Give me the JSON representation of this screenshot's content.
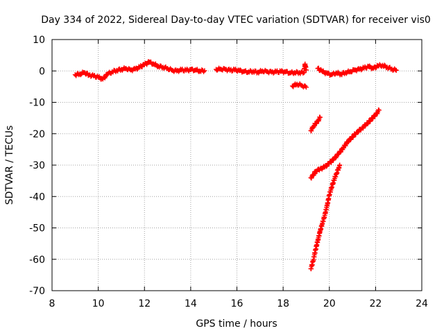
{
  "chart_data": {
    "type": "scatter",
    "title": "Day 334 of 2022, Sidereal Day-to-day VTEC variation (SDTVAR) for receiver vis0",
    "xlabel": "GPS time / hours",
    "ylabel": "SDTVAR / TECUs",
    "xlim": [
      8,
      24
    ],
    "ylim": [
      -70,
      10
    ],
    "xticks": [
      8,
      10,
      12,
      14,
      16,
      18,
      20,
      22,
      24
    ],
    "yticks": [
      10,
      0,
      -10,
      -20,
      -30,
      -40,
      -50,
      -60,
      -70
    ],
    "xtick_labels": [
      "8",
      "10",
      "12",
      "14",
      "16",
      "18",
      "20",
      "22",
      "24"
    ],
    "ytick_labels": [
      "10",
      "0",
      "-10",
      "-20",
      "-30",
      "-40",
      "-50",
      "-60",
      "-70"
    ],
    "grid": true,
    "marker": "plus",
    "color": "#ff0000",
    "series": [
      {
        "points": [
          [
            9.0,
            -1.2
          ],
          [
            9.2,
            -1.0
          ],
          [
            9.4,
            -0.5
          ],
          [
            9.6,
            -1.3
          ],
          [
            9.8,
            -1.6
          ],
          [
            10.0,
            -2.0
          ],
          [
            10.2,
            -2.6
          ],
          [
            10.4,
            -1.0
          ],
          [
            10.6,
            -0.3
          ],
          [
            10.8,
            0.2
          ],
          [
            11.0,
            0.5
          ],
          [
            11.2,
            0.8
          ],
          [
            11.4,
            0.3
          ],
          [
            11.6,
            0.6
          ],
          [
            11.8,
            1.2
          ],
          [
            12.0,
            2.0
          ],
          [
            12.2,
            2.8
          ],
          [
            12.4,
            2.2
          ],
          [
            12.6,
            1.5
          ],
          [
            12.8,
            1.2
          ],
          [
            13.0,
            0.8
          ],
          [
            13.2,
            0.2
          ],
          [
            13.4,
            0.0
          ],
          [
            13.6,
            0.3
          ],
          [
            13.8,
            0.2
          ],
          [
            14.0,
            0.4
          ],
          [
            14.2,
            0.3
          ],
          [
            14.4,
            0.0
          ],
          [
            14.6,
            0.1
          ],
          [
            15.1,
            0.5
          ],
          [
            15.3,
            0.6
          ],
          [
            15.5,
            0.5
          ],
          [
            15.7,
            0.2
          ],
          [
            15.9,
            0.3
          ],
          [
            16.1,
            0.1
          ],
          [
            16.3,
            -0.2
          ],
          [
            16.5,
            -0.3
          ],
          [
            16.7,
            -0.1
          ],
          [
            16.9,
            -0.4
          ],
          [
            17.1,
            0.0
          ],
          [
            17.3,
            -0.2
          ],
          [
            17.5,
            -0.4
          ],
          [
            17.7,
            -0.3
          ],
          [
            17.9,
            -0.2
          ],
          [
            18.1,
            -0.3
          ],
          [
            18.3,
            -0.6
          ],
          [
            18.5,
            -0.5
          ],
          [
            18.7,
            -0.5
          ],
          [
            18.9,
            -0.5
          ],
          [
            18.95,
            2.2
          ],
          [
            19.0,
            0.3
          ],
          [
            19.5,
            0.8
          ],
          [
            19.7,
            -0.2
          ],
          [
            19.9,
            -0.8
          ],
          [
            20.1,
            -1.2
          ],
          [
            20.3,
            -0.6
          ],
          [
            20.5,
            -1.0
          ],
          [
            20.7,
            -0.5
          ],
          [
            20.9,
            -0.2
          ],
          [
            21.1,
            0.3
          ],
          [
            21.3,
            0.5
          ],
          [
            21.5,
            0.9
          ],
          [
            21.7,
            1.4
          ],
          [
            21.9,
            0.8
          ],
          [
            22.1,
            1.6
          ],
          [
            22.3,
            1.8
          ],
          [
            22.5,
            1.2
          ],
          [
            22.7,
            0.6
          ],
          [
            22.9,
            0.2
          ]
        ]
      },
      {
        "points": [
          [
            18.4,
            -4.8
          ],
          [
            18.6,
            -4.2
          ],
          [
            18.8,
            -4.6
          ],
          [
            19.0,
            -5.2
          ]
        ]
      },
      {
        "points": [
          [
            19.2,
            -19.0
          ],
          [
            19.3,
            -17.8
          ],
          [
            19.4,
            -16.8
          ],
          [
            19.5,
            -16.0
          ],
          [
            19.6,
            -14.8
          ]
        ]
      },
      {
        "points": [
          [
            19.2,
            -34.0
          ],
          [
            19.3,
            -33.2
          ],
          [
            19.4,
            -32.0
          ],
          [
            19.6,
            -31.2
          ],
          [
            19.8,
            -30.6
          ],
          [
            20.0,
            -29.4
          ],
          [
            20.2,
            -28.0
          ],
          [
            20.4,
            -26.4
          ],
          [
            20.6,
            -24.5
          ],
          [
            20.8,
            -22.5
          ],
          [
            21.0,
            -21.0
          ],
          [
            21.2,
            -19.5
          ],
          [
            21.4,
            -18.3
          ],
          [
            21.6,
            -17.0
          ],
          [
            21.8,
            -15.5
          ],
          [
            22.0,
            -14.0
          ],
          [
            22.15,
            -12.5
          ]
        ]
      },
      {
        "points": [
          [
            19.2,
            -63.0
          ],
          [
            19.3,
            -60.5
          ],
          [
            19.4,
            -57.0
          ],
          [
            19.5,
            -54.0
          ],
          [
            19.6,
            -51.0
          ],
          [
            19.7,
            -48.5
          ],
          [
            19.8,
            -46.0
          ],
          [
            19.9,
            -43.0
          ],
          [
            20.0,
            -39.5
          ],
          [
            20.1,
            -37.0
          ],
          [
            20.2,
            -34.8
          ],
          [
            20.3,
            -32.8
          ],
          [
            20.4,
            -31.0
          ],
          [
            20.45,
            -30.0
          ]
        ]
      }
    ]
  }
}
